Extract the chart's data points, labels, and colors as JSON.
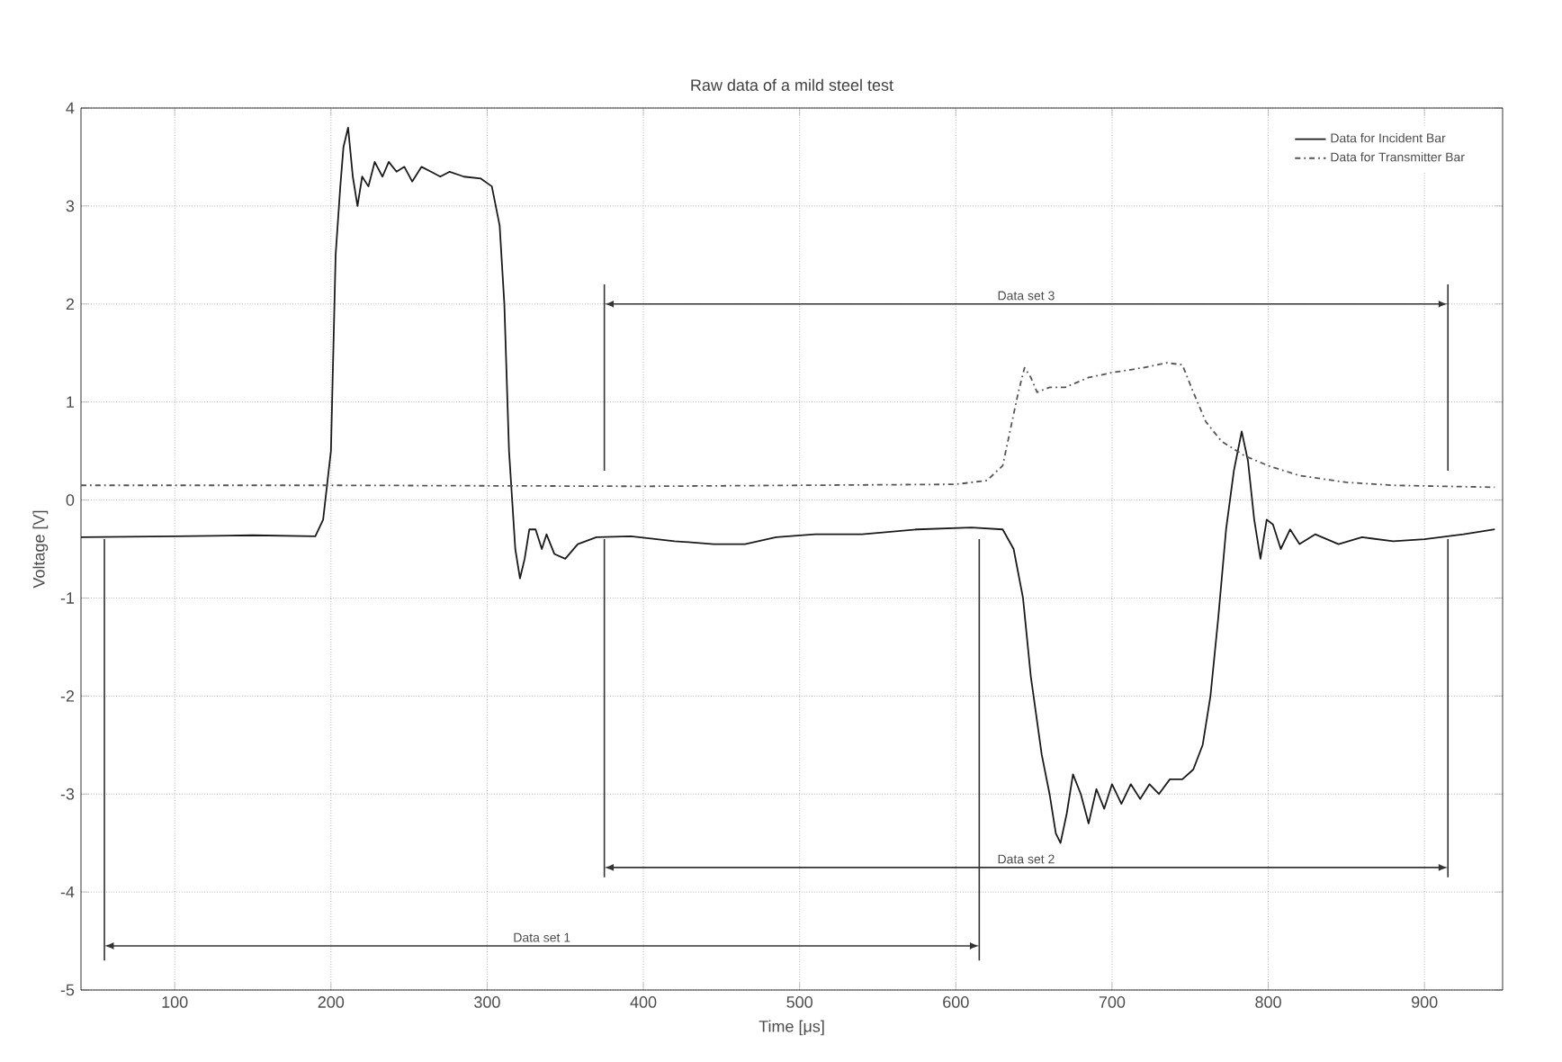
{
  "chart_data": {
    "type": "line",
    "title": "Raw data of a mild steel test",
    "xlabel": "Time [μs]",
    "ylabel": "Voltage [V]",
    "xlim": [
      40,
      950
    ],
    "ylim": [
      -5,
      4
    ],
    "xticks": [
      100,
      200,
      300,
      400,
      500,
      600,
      700,
      800,
      900
    ],
    "yticks": [
      -5,
      -4,
      -3,
      -2,
      -1,
      0,
      1,
      2,
      3,
      4
    ],
    "grid": true,
    "legend": "top right",
    "series": [
      {
        "name": "Data for Incident Bar",
        "color": "#1a1a1a",
        "line_style": "solid",
        "x": [
          40,
          100,
          150,
          190,
          195,
          200,
          203,
          206,
          208,
          211,
          214,
          217,
          220,
          224,
          228,
          233,
          237,
          242,
          247,
          252,
          258,
          264,
          270,
          276,
          285,
          296,
          303,
          308,
          311,
          314,
          318,
          321,
          324,
          327,
          331,
          335,
          338,
          343,
          350,
          358,
          370,
          392,
          420,
          445,
          465,
          485,
          510,
          540,
          575,
          610,
          630,
          637,
          643,
          648,
          655,
          660,
          664,
          667,
          671,
          675,
          680,
          685,
          690,
          695,
          700,
          706,
          712,
          718,
          724,
          730,
          737,
          745,
          752,
          758,
          763,
          768,
          773,
          778,
          783,
          787,
          791,
          795,
          799,
          803,
          808,
          814,
          820,
          830,
          845,
          860,
          880,
          900,
          925,
          945
        ],
        "values": [
          -0.38,
          -0.37,
          -0.36,
          -0.37,
          -0.2,
          0.5,
          2.5,
          3.2,
          3.6,
          3.8,
          3.3,
          3.0,
          3.3,
          3.2,
          3.45,
          3.3,
          3.45,
          3.35,
          3.4,
          3.25,
          3.4,
          3.35,
          3.3,
          3.35,
          3.3,
          3.28,
          3.2,
          2.8,
          2.0,
          0.5,
          -0.5,
          -0.8,
          -0.6,
          -0.3,
          -0.3,
          -0.5,
          -0.35,
          -0.55,
          -0.6,
          -0.45,
          -0.38,
          -0.37,
          -0.42,
          -0.45,
          -0.45,
          -0.38,
          -0.35,
          -0.35,
          -0.3,
          -0.28,
          -0.3,
          -0.5,
          -1.0,
          -1.8,
          -2.6,
          -3.0,
          -3.4,
          -3.5,
          -3.2,
          -2.8,
          -3.0,
          -3.3,
          -2.95,
          -3.15,
          -2.9,
          -3.1,
          -2.9,
          -3.05,
          -2.9,
          -3.0,
          -2.85,
          -2.85,
          -2.75,
          -2.5,
          -2.0,
          -1.2,
          -0.3,
          0.3,
          0.7,
          0.4,
          -0.2,
          -0.6,
          -0.2,
          -0.25,
          -0.5,
          -0.3,
          -0.45,
          -0.35,
          -0.45,
          -0.38,
          -0.42,
          -0.4,
          -0.35,
          -0.3
        ]
      },
      {
        "name": "Data for Transmitter Bar",
        "color": "#555555",
        "line_style": "dashed",
        "x": [
          40,
          200,
          400,
          600,
          620,
          630,
          636,
          640,
          644,
          648,
          652,
          660,
          670,
          685,
          700,
          720,
          735,
          745,
          752,
          760,
          770,
          785,
          800,
          820,
          850,
          880,
          945
        ],
        "values": [
          0.15,
          0.15,
          0.14,
          0.16,
          0.2,
          0.35,
          0.8,
          1.1,
          1.35,
          1.25,
          1.1,
          1.15,
          1.15,
          1.25,
          1.3,
          1.35,
          1.4,
          1.38,
          1.1,
          0.8,
          0.6,
          0.45,
          0.35,
          0.25,
          0.18,
          0.15,
          0.13
        ]
      }
    ],
    "annotations": [
      "Data set 1",
      "Data set 2",
      "Data set 3"
    ]
  }
}
